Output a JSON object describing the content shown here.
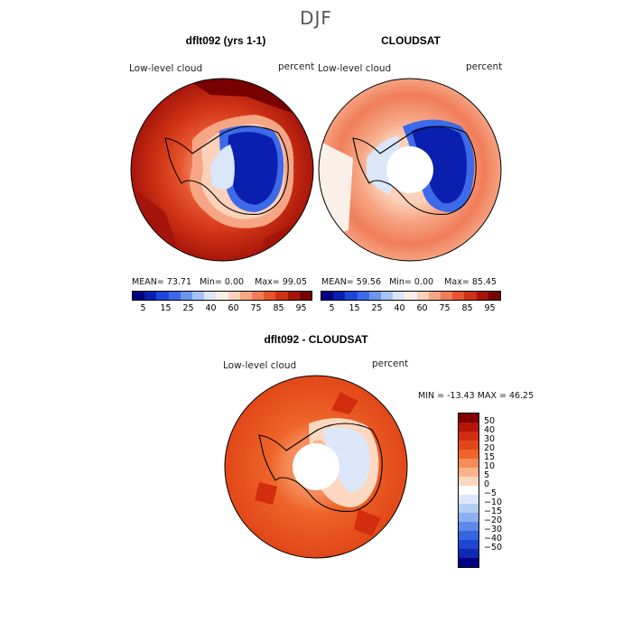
{
  "season": "DJF",
  "panels": [
    {
      "title": "dflt092 (yrs 1-1)",
      "field": "Low-level cloud",
      "units": "percent",
      "mean_label": "MEAN=",
      "mean": "73.71",
      "min_label": "Min=",
      "min": "0.00",
      "max_label": "Max=",
      "max": "99.05"
    },
    {
      "title": "CLOUDSAT",
      "field": "Low-level cloud",
      "units": "percent",
      "mean_label": "MEAN=",
      "mean": "59.56",
      "min_label": "Min=",
      "min": "0.00",
      "max_label": "Max=",
      "max": "85.45"
    },
    {
      "title": "dflt092 - CLOUDSAT",
      "field": "Low-level cloud",
      "units": "percent",
      "minmax_text": "MIN = -13.43 MAX =  46.25"
    }
  ],
  "colorbar_abs": {
    "colors": [
      "#000080",
      "#0a1fb0",
      "#1e46d8",
      "#3c6ae8",
      "#6e94ee",
      "#a6c2f4",
      "#dae6fa",
      "#fbf0e8",
      "#fbd2b9",
      "#f6a684",
      "#f07d5a",
      "#e6542e",
      "#ce3214",
      "#a5140a",
      "#780000"
    ],
    "ticks": [
      "5",
      "15",
      "25",
      "40",
      "60",
      "75",
      "85",
      "95"
    ]
  },
  "colorbar_diff": {
    "colors": [
      "#800000",
      "#b4140a",
      "#d22d0f",
      "#e14618",
      "#ee6428",
      "#f58c5a",
      "#fab48c",
      "#fcd8c0",
      "#ffffff",
      "#dce8fa",
      "#b4cdf5",
      "#8cb0f0",
      "#5f88ea",
      "#3764e1",
      "#1e46d2",
      "#0f28b4",
      "#000080"
    ],
    "ticks": [
      "50",
      "40",
      "30",
      "20",
      "15",
      "10",
      "5",
      "0",
      "−5",
      "−10",
      "−15",
      "−20",
      "−30",
      "−40",
      "−50"
    ]
  },
  "chart_data": [
    {
      "type": "heatmap",
      "projection": "south-polar-stereographic",
      "title": "dflt092 (yrs 1-1)",
      "field": "Low-level cloud",
      "units": "percent",
      "mean": 73.71,
      "min": 0.0,
      "max": 99.05,
      "levels": [
        5,
        15,
        25,
        40,
        60,
        75,
        85,
        95
      ]
    },
    {
      "type": "heatmap",
      "projection": "south-polar-stereographic",
      "title": "CLOUDSAT",
      "field": "Low-level cloud",
      "units": "percent",
      "mean": 59.56,
      "min": 0.0,
      "max": 85.45,
      "levels": [
        5,
        15,
        25,
        40,
        60,
        75,
        85,
        95
      ]
    },
    {
      "type": "heatmap",
      "projection": "south-polar-stereographic",
      "title": "dflt092 - CLOUDSAT",
      "field": "Low-level cloud",
      "units": "percent",
      "min": -13.43,
      "max": 46.25,
      "levels": [
        -50,
        -40,
        -30,
        -20,
        -15,
        -10,
        -5,
        0,
        5,
        10,
        15,
        20,
        30,
        40,
        50
      ]
    }
  ]
}
